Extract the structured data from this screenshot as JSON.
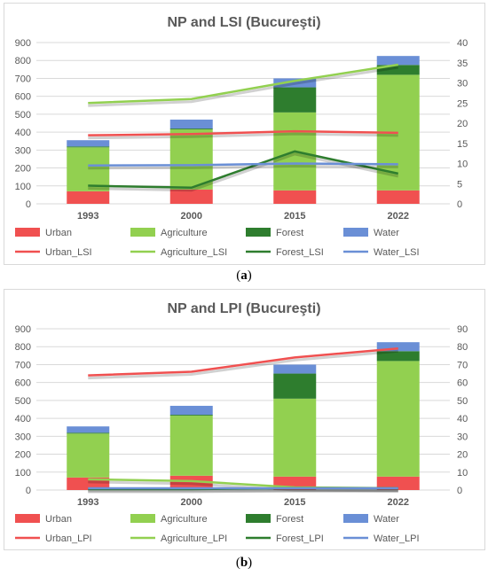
{
  "captions": {
    "a_open": "(",
    "a_letter": "a",
    "a_close": ")",
    "b_open": "(",
    "b_letter": "b",
    "b_close": ")"
  },
  "colors": {
    "Urban": "#f05050",
    "Agriculture": "#92d050",
    "Forest": "#2e7d2e",
    "Water": "#6a8fd6"
  },
  "chart_data": [
    {
      "type": "bar",
      "stacked": true,
      "title": "NP and LSI (Bucureşti)",
      "categories": [
        "1993",
        "2000",
        "2015",
        "2022"
      ],
      "ylim": [
        0,
        900
      ],
      "yticks": [
        0,
        100,
        200,
        300,
        400,
        500,
        600,
        700,
        800,
        900
      ],
      "y2lim": [
        0,
        40
      ],
      "y2ticks": [
        0,
        5,
        10,
        15,
        20,
        25,
        30,
        35,
        40
      ],
      "grid": true,
      "legend_position": "bottom",
      "series": [
        {
          "name": "Urban",
          "values": [
            70,
            80,
            75,
            75
          ]
        },
        {
          "name": "Agriculture",
          "values": [
            245,
            335,
            435,
            645
          ]
        },
        {
          "name": "Forest",
          "values": [
            5,
            5,
            140,
            55
          ]
        },
        {
          "name": "Water",
          "values": [
            35,
            50,
            50,
            50
          ]
        }
      ],
      "line_series": [
        {
          "name": "Urban_LSI",
          "values": [
            17,
            17.3,
            18,
            17.6
          ]
        },
        {
          "name": "Agriculture_LSI",
          "values": [
            25,
            26,
            30.5,
            34.5
          ]
        },
        {
          "name": "Forest_LSI",
          "values": [
            4.5,
            4,
            13,
            7.5
          ]
        },
        {
          "name": "Water_LSI",
          "values": [
            9.5,
            9.6,
            10,
            9.8
          ]
        }
      ]
    },
    {
      "type": "bar",
      "stacked": true,
      "title": "NP and LPI (Bucureşti)",
      "categories": [
        "1993",
        "2000",
        "2015",
        "2022"
      ],
      "ylim": [
        0,
        900
      ],
      "yticks": [
        0,
        100,
        200,
        300,
        400,
        500,
        600,
        700,
        800,
        900
      ],
      "y2lim": [
        0,
        90
      ],
      "y2ticks": [
        0,
        10,
        20,
        30,
        40,
        50,
        60,
        70,
        80,
        90
      ],
      "grid": true,
      "legend_position": "bottom",
      "series": [
        {
          "name": "Urban",
          "values": [
            70,
            80,
            75,
            75
          ]
        },
        {
          "name": "Agriculture",
          "values": [
            245,
            335,
            435,
            645
          ]
        },
        {
          "name": "Forest",
          "values": [
            5,
            5,
            140,
            55
          ]
        },
        {
          "name": "Water",
          "values": [
            35,
            50,
            50,
            50
          ]
        }
      ],
      "line_series": [
        {
          "name": "Urban_LPI",
          "values": [
            64,
            66,
            74,
            79
          ]
        },
        {
          "name": "Agriculture_LPI",
          "values": [
            6,
            5,
            1.5,
            1
          ]
        },
        {
          "name": "Forest_LPI",
          "values": [
            0.5,
            0.5,
            1,
            1
          ]
        },
        {
          "name": "Water_LPI",
          "values": [
            1,
            1,
            1,
            1
          ]
        }
      ]
    }
  ]
}
